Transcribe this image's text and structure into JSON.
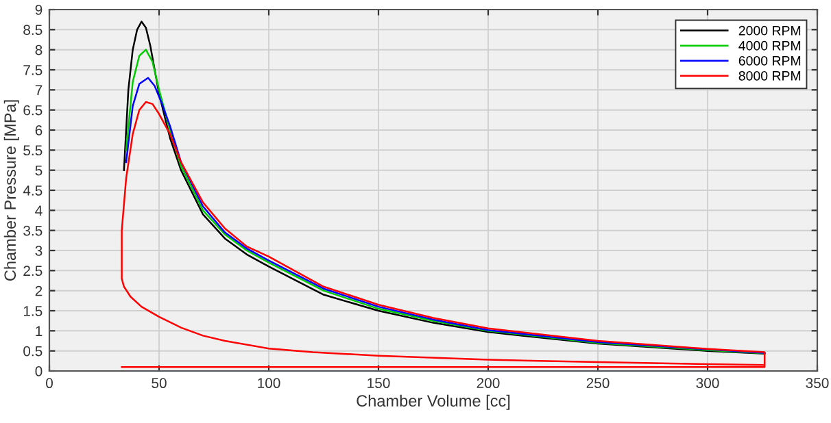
{
  "chart_data": {
    "type": "line",
    "xlabel": "Chamber Volume [cc]",
    "ylabel": "Chamber Pressure [MPa]",
    "xlim": [
      0,
      350
    ],
    "ylim": [
      0,
      9
    ],
    "xticks": [
      0,
      50,
      100,
      150,
      200,
      250,
      300,
      350
    ],
    "yticks": [
      0,
      0.5,
      1,
      1.5,
      2,
      2.5,
      3,
      3.5,
      4,
      4.5,
      5,
      5.5,
      6,
      6.5,
      7,
      7.5,
      8,
      8.5,
      9
    ],
    "grid": true,
    "legend": "top right",
    "marker": "none",
    "line_style": "solid",
    "series": [
      {
        "name": "2000 RPM",
        "color": "#000000",
        "x": [
          34,
          36,
          38,
          40,
          42,
          44,
          46,
          48,
          50,
          55,
          60,
          70,
          80,
          90,
          100,
          125,
          150,
          175,
          200,
          250,
          300,
          326
        ],
        "values": [
          5.0,
          7.0,
          8.0,
          8.5,
          8.7,
          8.55,
          8.1,
          7.5,
          6.9,
          5.8,
          5.0,
          3.9,
          3.3,
          2.9,
          2.6,
          1.9,
          1.5,
          1.2,
          0.97,
          0.68,
          0.5,
          0.43
        ]
      },
      {
        "name": "4000 RPM",
        "color": "#00cc00",
        "x": [
          35,
          38,
          41,
          44,
          47,
          50,
          55,
          60,
          70,
          80,
          90,
          100,
          125,
          150,
          175,
          200,
          250,
          300,
          326
        ],
        "values": [
          5.5,
          7.2,
          7.85,
          8.0,
          7.7,
          7.0,
          6.0,
          5.1,
          4.0,
          3.4,
          3.0,
          2.7,
          2.0,
          1.55,
          1.25,
          1.0,
          0.7,
          0.52,
          0.44
        ]
      },
      {
        "name": "6000 RPM",
        "color": "#0000ff",
        "x": [
          35,
          38,
          41,
          45,
          48,
          51,
          55,
          60,
          70,
          80,
          90,
          100,
          125,
          150,
          175,
          200,
          250,
          300,
          326
        ],
        "values": [
          5.2,
          6.6,
          7.15,
          7.3,
          7.1,
          6.7,
          6.1,
          5.2,
          4.1,
          3.45,
          3.05,
          2.75,
          2.05,
          1.6,
          1.28,
          1.02,
          0.72,
          0.54,
          0.45
        ]
      },
      {
        "name": "8000 RPM",
        "color": "#ff0000",
        "x": [
          33,
          326,
          326,
          300,
          250,
          200,
          150,
          120,
          100,
          80,
          70,
          60,
          50,
          42,
          37,
          34,
          33,
          33,
          35,
          38,
          41,
          44,
          47,
          50,
          55,
          60,
          70,
          80,
          90,
          100,
          125,
          150,
          175,
          200,
          250,
          300,
          326,
          326
        ],
        "values": [
          0.1,
          0.1,
          0.15,
          0.17,
          0.22,
          0.28,
          0.38,
          0.47,
          0.56,
          0.75,
          0.88,
          1.08,
          1.35,
          1.6,
          1.85,
          2.1,
          2.3,
          3.5,
          4.8,
          5.9,
          6.5,
          6.7,
          6.65,
          6.4,
          5.9,
          5.2,
          4.2,
          3.55,
          3.1,
          2.85,
          2.1,
          1.65,
          1.32,
          1.06,
          0.75,
          0.55,
          0.47,
          0.15
        ]
      }
    ]
  }
}
